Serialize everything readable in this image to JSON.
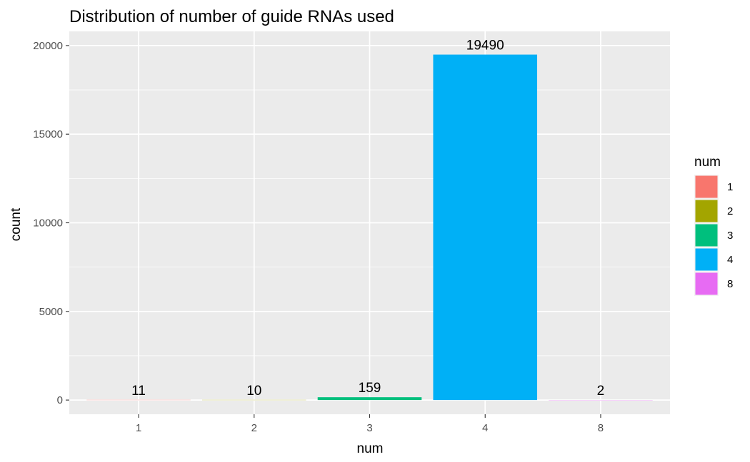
{
  "chart_data": {
    "type": "bar",
    "title": "Distribution of number of guide RNAs used",
    "xlabel": "num",
    "ylabel": "count",
    "categories": [
      "1",
      "2",
      "3",
      "4",
      "8"
    ],
    "values": [
      11,
      10,
      159,
      19490,
      2
    ],
    "data_labels": [
      "11",
      "10",
      "159",
      "19490",
      "2"
    ],
    "colors": [
      "#F8766D",
      "#A3A500",
      "#00BF7D",
      "#00B0F6",
      "#E76BF3"
    ],
    "ylim": [
      -800,
      20800
    ],
    "yticks": [
      0,
      5000,
      10000,
      15000,
      20000
    ],
    "ytick_labels": [
      "0",
      "5000",
      "10000",
      "15000",
      "20000"
    ],
    "grid": true,
    "panel_background": "#EBEBEB",
    "legend": {
      "title": "num",
      "position": "right",
      "entries": [
        "1",
        "2",
        "3",
        "4",
        "8"
      ]
    }
  }
}
